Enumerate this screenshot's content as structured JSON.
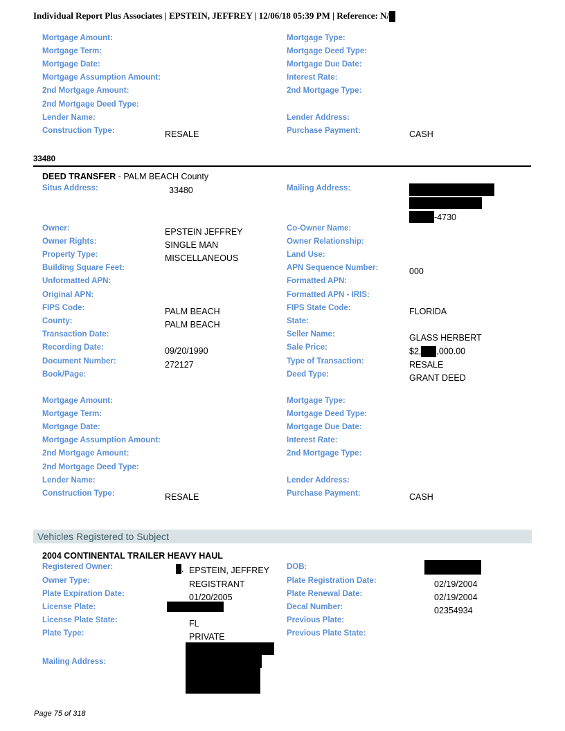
{
  "header": {
    "text": "Individual Report Plus Associates | EPSTEIN, JEFFREY | 12/06/18 05:39 PM | Reference: N/"
  },
  "top_mortgage": [
    [
      "Mortgage Amount:",
      "",
      "Mortgage Type:",
      ""
    ],
    [
      "Mortgage Term:",
      "",
      "Mortgage Deed Type:",
      ""
    ],
    [
      "Mortgage Date:",
      "",
      "Mortgage Due Date:",
      ""
    ],
    [
      "Mortgage Assumption Amount:",
      "",
      "Interest Rate:",
      ""
    ],
    [
      "2nd Mortgage Amount:",
      "",
      "2nd Mortgage Type:",
      ""
    ],
    [
      "2nd Mortgage Deed Type:",
      "",
      "",
      ""
    ],
    [
      "Lender Name:",
      "",
      "Lender Address:",
      ""
    ],
    [
      "Construction Type:",
      "RESALE",
      "Purchase Payment:",
      "CASH"
    ]
  ],
  "section": {
    "heading": "33480"
  },
  "deed": {
    "title_bold": "DEED TRANSFER",
    "title_rest": " - PALM BEACH County",
    "situs_label": "Situs Address:",
    "situs_value": "33480",
    "mailing_label": "Mailing Address:",
    "mailing_suffix": "-4730",
    "rows": [
      [
        "Owner:",
        "EPSTEIN JEFFREY",
        "Co-Owner Name:",
        ""
      ],
      [
        "Owner Rights:",
        "SINGLE MAN",
        "Owner Relationship:",
        ""
      ],
      [
        "Property Type:",
        "MISCELLANEOUS",
        "Land Use:",
        ""
      ],
      [
        "Building Square Feet:",
        "",
        "APN Sequence Number:",
        "000"
      ],
      [
        "Unformatted APN:",
        "",
        "Formatted APN:",
        ""
      ],
      [
        "Original APN:",
        "",
        "Formatted APN - IRIS:",
        ""
      ],
      [
        "FIPS Code:",
        "PALM BEACH",
        "FIPS State Code:",
        "FLORIDA"
      ],
      [
        "County:",
        "PALM BEACH",
        "State:",
        ""
      ],
      [
        "Transaction Date:",
        "",
        "Seller Name:",
        "GLASS HERBERT"
      ],
      [
        "Recording Date:",
        "09/20/1990",
        "Sale Price:",
        ""
      ],
      [
        "Document Number:",
        "272127",
        "Type of Transaction:",
        "RESALE"
      ],
      [
        "Book/Page:",
        "",
        "Deed Type:",
        "GRANT DEED"
      ]
    ],
    "sale_price_prefix": "$2,",
    "sale_price_suffix": ",000.00",
    "mortgage": [
      [
        "Mortgage Amount:",
        "",
        "Mortgage Type:",
        ""
      ],
      [
        "Mortgage Term:",
        "",
        "Mortgage Deed Type:",
        ""
      ],
      [
        "Mortgage Date:",
        "",
        "Mortgage Due Date:",
        ""
      ],
      [
        "Mortgage Assumption Amount:",
        "",
        "Interest Rate:",
        ""
      ],
      [
        "2nd Mortgage Amount:",
        "",
        "2nd Mortgage Type:",
        ""
      ],
      [
        "2nd Mortgage Deed Type:",
        "",
        "",
        ""
      ],
      [
        "Lender Name:",
        "",
        "Lender Address:",
        ""
      ],
      [
        "Construction Type:",
        "RESALE",
        "Purchase Payment:",
        "CASH"
      ]
    ]
  },
  "vehicles": {
    "band_title": "Vehicles Registered to Subject",
    "title": "2004 CONTINENTAL TRAILER HEAVY HAUL",
    "owner_suffix": ".",
    "rows": [
      [
        "Registered Owner:",
        "EPSTEIN, JEFFREY",
        "DOB:",
        ""
      ],
      [
        "Owner Type:",
        "REGISTRANT",
        "Plate Registration Date:",
        "02/19/2004"
      ],
      [
        "Plate Expiration Date:",
        "01/20/2005",
        "Plate Renewal Date:",
        "02/19/2004"
      ],
      [
        "License Plate:",
        "",
        "Decal Number:",
        "02354934"
      ],
      [
        "License Plate State:",
        "FL",
        "Previous Plate:",
        ""
      ],
      [
        "Plate Type:",
        "PRIVATE",
        "Previous Plate State:",
        ""
      ]
    ],
    "mailing_label": "Mailing Address:"
  },
  "footer": {
    "page": "Page 75 of 318"
  }
}
